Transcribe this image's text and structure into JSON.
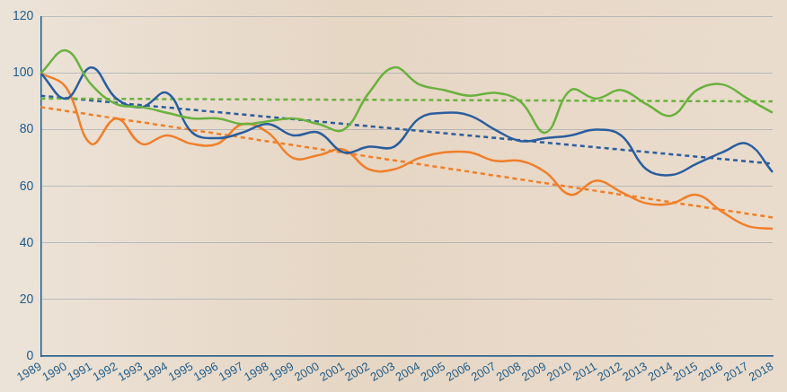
{
  "chart_data": {
    "type": "line",
    "categories": [
      "1989",
      "1990",
      "1991",
      "1992",
      "1993",
      "1994",
      "1995",
      "1996",
      "1997",
      "1998",
      "1999",
      "2000",
      "2001",
      "2002",
      "2003",
      "2004",
      "2005",
      "2006",
      "2007",
      "2008",
      "2009",
      "2010",
      "2011",
      "2012",
      "2013",
      "2014",
      "2015",
      "2016",
      "2017",
      "2018"
    ],
    "series": [
      {
        "color": "#6ab23e",
        "line_style": "solid",
        "values": [
          100,
          108,
          96,
          89,
          88,
          86,
          84,
          84,
          82,
          83,
          84,
          82,
          80,
          93,
          102,
          96,
          94,
          92,
          93,
          90,
          79,
          94,
          91,
          94,
          89,
          85,
          94,
          96,
          91,
          86
        ]
      },
      {
        "color": "#2a5e9e",
        "line_style": "solid",
        "values": [
          100,
          91,
          102,
          91,
          88,
          93,
          79,
          77,
          79,
          82,
          78,
          79,
          72,
          74,
          74,
          84,
          86,
          85,
          80,
          76,
          77,
          78,
          80,
          78,
          66,
          64,
          68,
          72,
          75,
          65
        ]
      },
      {
        "color": "#f07f2a",
        "line_style": "solid",
        "values": [
          100,
          95,
          75,
          84,
          75,
          78,
          75,
          75,
          82,
          79,
          70,
          71,
          73,
          66,
          66,
          70,
          72,
          72,
          69,
          69,
          65,
          57,
          62,
          58,
          54,
          54,
          57,
          51,
          46,
          45
        ]
      },
      {
        "color": "#6ab23e",
        "line_style": "dashed",
        "values": [
          91,
          null,
          null,
          null,
          null,
          null,
          null,
          null,
          null,
          null,
          null,
          null,
          null,
          null,
          null,
          null,
          null,
          null,
          null,
          null,
          null,
          null,
          null,
          null,
          null,
          null,
          null,
          null,
          null,
          90
        ]
      },
      {
        "color": "#2a5e9e",
        "line_style": "dashed",
        "values": [
          92,
          null,
          null,
          null,
          null,
          null,
          null,
          null,
          null,
          null,
          null,
          null,
          null,
          null,
          null,
          null,
          null,
          null,
          null,
          null,
          null,
          null,
          null,
          null,
          null,
          null,
          null,
          null,
          null,
          68
        ]
      },
      {
        "color": "#f07f2a",
        "line_style": "dashed",
        "values": [
          88,
          null,
          null,
          null,
          null,
          null,
          null,
          null,
          null,
          null,
          null,
          null,
          null,
          null,
          null,
          null,
          null,
          null,
          null,
          null,
          null,
          null,
          null,
          null,
          null,
          null,
          null,
          null,
          null,
          49
        ]
      }
    ],
    "ylim": [
      0,
      120
    ],
    "yticks": [
      0,
      20,
      40,
      60,
      80,
      100,
      120
    ],
    "grid": true
  }
}
